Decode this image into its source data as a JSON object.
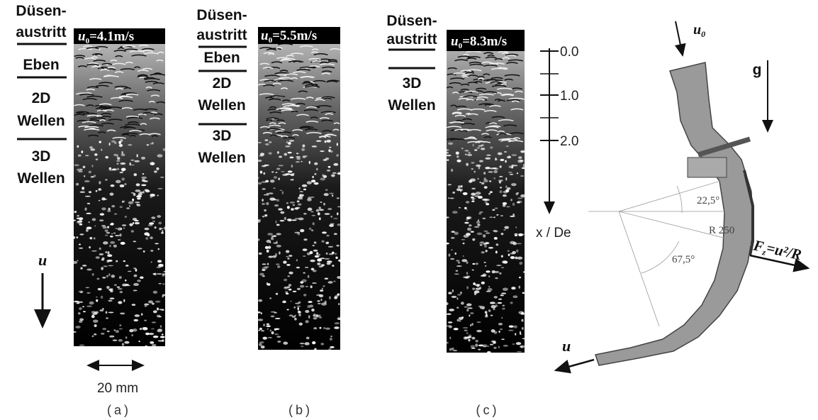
{
  "panels": [
    {
      "nozzle_label": [
        "Düsen-",
        "austritt"
      ],
      "velocity": {
        "symbol": "u",
        "subscript": "0",
        "value": "=4.1m/s"
      },
      "regimes": [
        [
          "Eben"
        ],
        [
          "2D",
          "Wellen"
        ],
        [
          "3D",
          "Wellen"
        ]
      ],
      "caption": "(a)"
    },
    {
      "nozzle_label": [
        "Düsen-",
        "austritt"
      ],
      "velocity": {
        "symbol": "u",
        "subscript": "0",
        "value": "=5.5m/s"
      },
      "regimes": [
        [
          "Eben"
        ],
        [
          "2D",
          "Wellen"
        ],
        [
          "3D",
          "Wellen"
        ]
      ],
      "caption": "(b)"
    },
    {
      "nozzle_label": [
        "Düsen-",
        "austritt"
      ],
      "velocity": {
        "symbol": "u",
        "subscript": "0",
        "value": "=8.3m/s"
      },
      "regimes": [
        [
          "3D",
          "Wellen"
        ]
      ],
      "caption": "(c)"
    }
  ],
  "flow_direction": "u",
  "scale_bar": "20 mm",
  "axis": {
    "ticks": [
      "0.0",
      "1.0",
      "2.0"
    ],
    "label": "x / De"
  },
  "diagram": {
    "inlet": {
      "symbol": "u",
      "subscript": "0"
    },
    "gravity": "g",
    "angle_1": "22,5°",
    "radius": "R 250",
    "angle_2": "67,5°",
    "force": {
      "symbol": "F",
      "subscript": "z",
      "value": "=u²/R"
    },
    "outlet": "u"
  }
}
